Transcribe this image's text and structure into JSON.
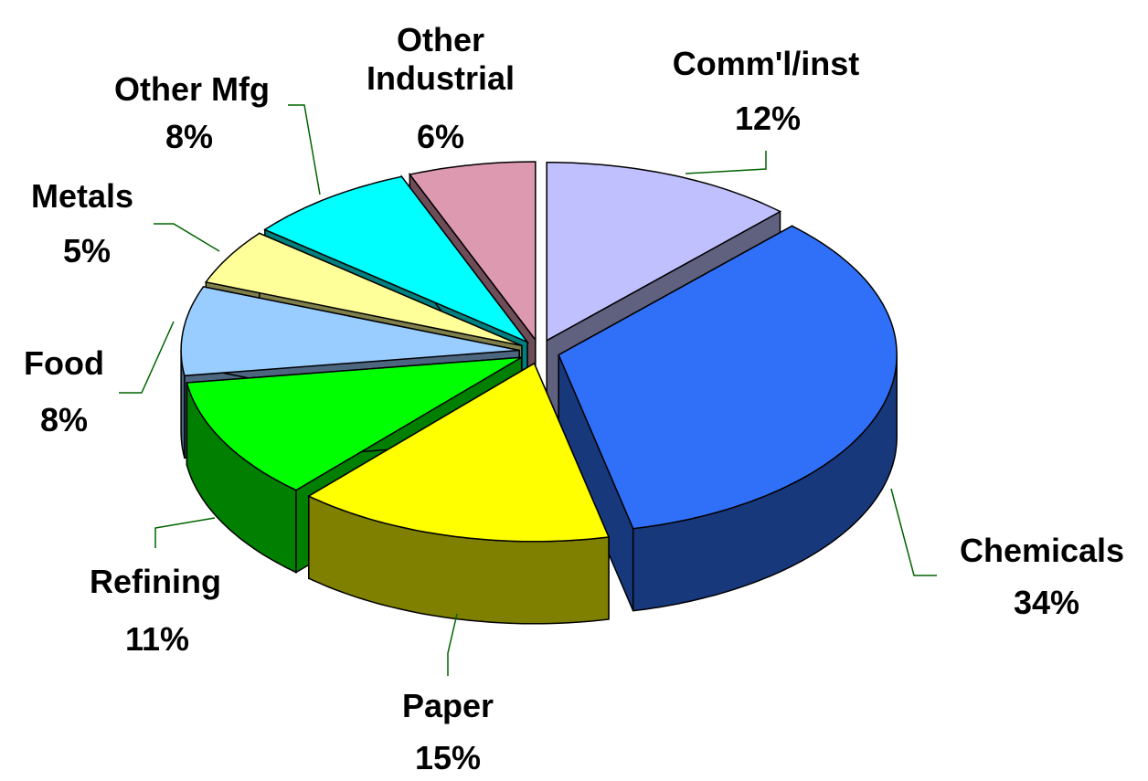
{
  "chart_data": {
    "type": "pie3d",
    "categories": [
      "Comm'l/inst",
      "Chemicals",
      "Paper",
      "Refining",
      "Food",
      "Metals",
      "Other Mfg",
      "Other Industrial"
    ],
    "values": [
      12,
      34,
      15,
      11,
      8,
      5,
      8,
      6
    ],
    "value_labels": [
      "12%",
      "34%",
      "15%",
      "11%",
      "8%",
      "5%",
      "8%",
      "6%"
    ],
    "colors": [
      "#c0c0ff",
      "#3070f8",
      "#ffff00",
      "#00ff00",
      "#99ccff",
      "#ffff99",
      "#00ffff",
      "#dd99b0"
    ]
  }
}
